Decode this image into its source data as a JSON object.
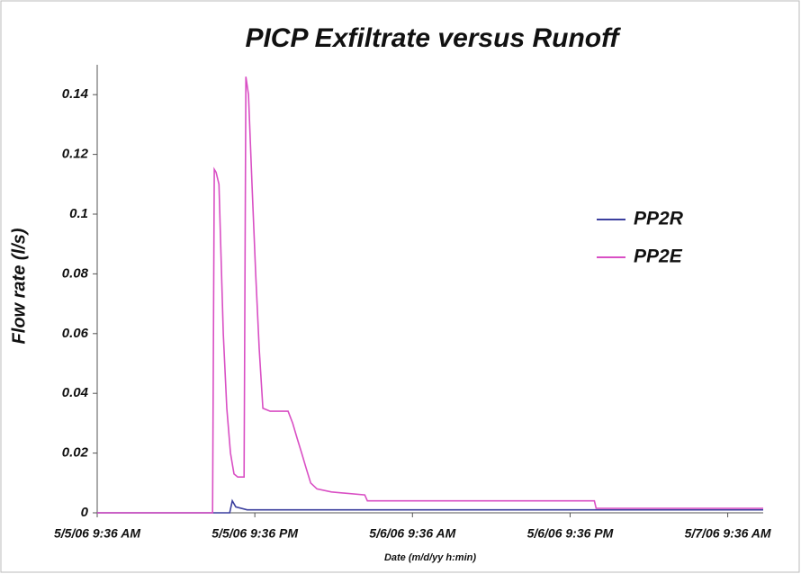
{
  "chart_data": {
    "type": "line",
    "title": "PICP Exfiltrate versus Runoff",
    "x_label": "Date (m/d/yy h:min)",
    "y_label": "Flow rate (l/s)",
    "xlim": [
      "2006-05-05T09:36",
      "2006-05-07T12:18"
    ],
    "xticks": [
      {
        "value": "2006-05-05T09:36",
        "label": "5/5/06 9:36 AM"
      },
      {
        "value": "2006-05-05T21:36",
        "label": "5/5/06 9:36 PM"
      },
      {
        "value": "2006-05-06T09:36",
        "label": "5/6/06 9:36 AM"
      },
      {
        "value": "2006-05-06T21:36",
        "label": "5/6/06 9:36 PM"
      },
      {
        "value": "2006-05-07T09:36",
        "label": "5/7/06 9:36 AM"
      }
    ],
    "ylim": [
      0,
      0.15
    ],
    "yticks": [
      0,
      0.02,
      0.04,
      0.06,
      0.08,
      0.1,
      0.12,
      0.14
    ],
    "legend": "right",
    "series": [
      {
        "name": "PP2R",
        "color": "#3b3f9e",
        "x": [
          "2006-05-05T09:36",
          "2006-05-05T19:41",
          "2006-05-05T19:53",
          "2006-05-05T20:09",
          "2006-05-05T21:01",
          "2006-05-07T12:18"
        ],
        "values": [
          0,
          0,
          0.004,
          0.002,
          0.001,
          0.001
        ]
      },
      {
        "name": "PP2E",
        "color": "#d94fc4",
        "x": [
          "2006-05-05T09:36",
          "2006-05-05T18:23",
          "2006-05-05T18:31",
          "2006-05-05T18:39",
          "2006-05-05T18:52",
          "2006-05-05T19:00",
          "2006-05-05T19:12",
          "2006-05-05T19:28",
          "2006-05-05T19:45",
          "2006-05-05T20:01",
          "2006-05-05T20:18",
          "2006-05-05T20:43",
          "2006-05-05T20:47",
          "2006-05-05T20:55",
          "2006-05-05T21:07",
          "2006-05-05T21:23",
          "2006-05-05T21:40",
          "2006-05-05T21:56",
          "2006-05-05T22:13",
          "2006-05-05T22:46",
          "2006-05-06T00:08",
          "2006-05-06T00:29",
          "2006-05-06T00:49",
          "2006-05-06T01:10",
          "2006-05-06T01:30",
          "2006-05-06T01:51",
          "2006-05-06T02:20",
          "2006-05-06T03:26",
          "2006-05-06T05:58",
          "2006-05-06T06:10",
          "2006-05-06T23:27",
          "2006-05-06T23:35",
          "2006-05-07T12:18"
        ],
        "values": [
          0,
          0,
          0.115,
          0.114,
          0.11,
          0.09,
          0.06,
          0.035,
          0.02,
          0.013,
          0.012,
          0.012,
          0.012,
          0.146,
          0.14,
          0.11,
          0.08,
          0.055,
          0.035,
          0.034,
          0.034,
          0.03,
          0.025,
          0.02,
          0.015,
          0.01,
          0.008,
          0.007,
          0.006,
          0.004,
          0.004,
          0.0015,
          0.0015
        ]
      }
    ]
  }
}
